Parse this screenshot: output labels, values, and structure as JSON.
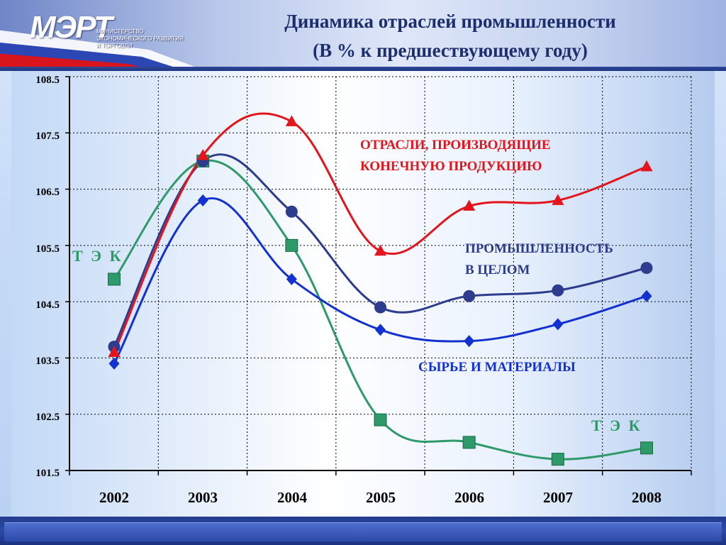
{
  "header": {
    "logo_text": "МЭРТ",
    "ministry_lines": [
      "Министерство",
      "экономического развития",
      "и торговли"
    ],
    "title_line1": "Динамика отраслей промышленности",
    "title_line2": "(В % к предшествующему году)"
  },
  "colors": {
    "final_products": "#e4141c",
    "industry_total": "#2e3c8e",
    "raw_materials": "#1330d0",
    "fuel_energy": "#2e9a6a",
    "grid": "#000000",
    "title": "#1c2e6e"
  },
  "chart_data": {
    "type": "line",
    "title": "Динамика отраслей промышленности (В % к предшествующему году)",
    "xlabel": "",
    "ylabel": "",
    "x": [
      "2002",
      "2003",
      "2004",
      "2005",
      "2006",
      "2007",
      "2008"
    ],
    "ylim": [
      101.5,
      108.5
    ],
    "yticks": [
      "108.5",
      "107.5",
      "106.5",
      "105.5",
      "104.5",
      "103.5",
      "102.5",
      "101.5"
    ],
    "grid": true,
    "series": [
      {
        "name": "ОТРАСЛИ, ПРОИЗВОДЯЩИЕ КОНЕЧНУЮ ПРОДУКЦИЮ",
        "label_lines": [
          "ОТРАСЛИ, ПРОИЗВОДЯЩИЕ",
          "КОНЕЧНУЮ ПРОДУКЦИЮ"
        ],
        "marker": "triangle",
        "color_key": "final_products",
        "values": [
          103.6,
          107.1,
          107.7,
          105.4,
          106.2,
          106.3,
          106.9
        ]
      },
      {
        "name": "ПРОМЫШЛЕННОСТЬ В ЦЕЛОМ",
        "label_lines": [
          "ПРОМЫШЛЕННОСТЬ",
          "В ЦЕЛОМ"
        ],
        "marker": "circle",
        "color_key": "industry_total",
        "values": [
          103.7,
          107.0,
          106.1,
          104.4,
          104.6,
          104.7,
          105.1
        ]
      },
      {
        "name": "СЫРЬЕ И МАТЕРИАЛЫ",
        "label_lines": [
          "СЫРЬЕ И МАТЕРИАЛЫ"
        ],
        "marker": "diamond",
        "color_key": "raw_materials",
        "values": [
          103.4,
          106.3,
          104.9,
          104.0,
          103.8,
          104.1,
          104.6
        ]
      },
      {
        "name": "Т Э К",
        "label_lines": [
          "Т Э К"
        ],
        "marker": "square",
        "color_key": "fuel_energy",
        "values": [
          104.9,
          107.0,
          105.5,
          102.4,
          102.0,
          101.7,
          101.9
        ]
      }
    ],
    "annotations": [
      "Т Э К",
      "Т Э К"
    ]
  }
}
